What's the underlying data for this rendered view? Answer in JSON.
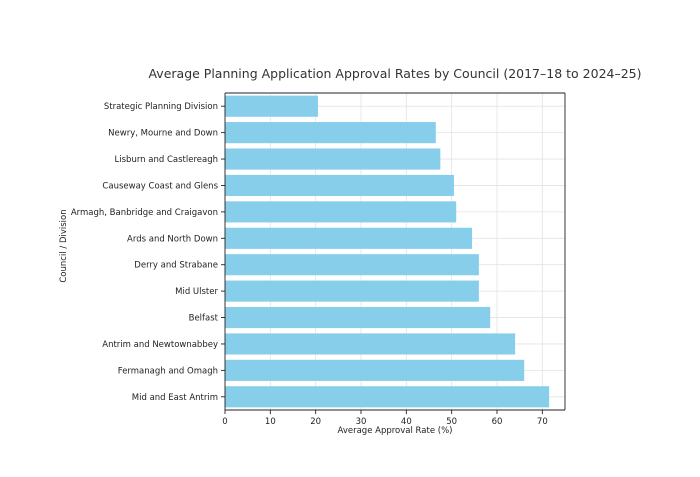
{
  "chart_data": {
    "type": "bar",
    "orientation": "horizontal",
    "title": "Average Planning Application Approval Rates by Council (2017–18 to 2024–25)",
    "xlabel": "Average Approval Rate (%)",
    "ylabel": "Council / Division",
    "categories": [
      "Strategic Planning Division",
      "Newry, Mourne and Down",
      "Lisburn and Castlereagh",
      "Causeway Coast and Glens",
      "Armagh, Banbridge and Craigavon",
      "Ards and North Down",
      "Derry and Strabane",
      "Mid Ulster",
      "Belfast",
      "Antrim and Newtownabbey",
      "Fermanagh and Omagh",
      "Mid and East Antrim"
    ],
    "values": [
      20.5,
      46.5,
      47.5,
      50.5,
      51,
      54.5,
      56,
      56,
      58.5,
      64,
      66,
      71.5
    ],
    "xlim": [
      0,
      75
    ],
    "xticks": [
      0,
      10,
      20,
      30,
      40,
      50,
      60,
      70
    ],
    "grid": true,
    "bar_color": "#87ceeb"
  }
}
